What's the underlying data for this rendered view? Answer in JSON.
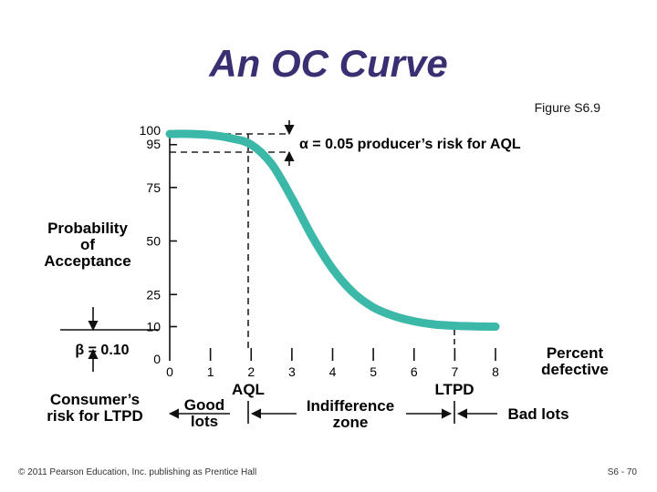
{
  "slide": {
    "title": "An OC Curve",
    "figure_label": "Figure S6.9",
    "footer_left": "© 2011 Pearson Education, Inc. publishing as Prentice Hall",
    "footer_right": "S6 - 70"
  },
  "chart_data": {
    "type": "line",
    "ylabel_lines": [
      "Probability",
      "of",
      "Acceptance"
    ],
    "xlabel_lines": [
      "Percent",
      "defective"
    ],
    "y_ticks": [
      100,
      95,
      75,
      50,
      25,
      10,
      0
    ],
    "x_ticks": [
      0,
      1,
      2,
      3,
      4,
      5,
      6,
      7,
      8
    ],
    "xlim": [
      0,
      8
    ],
    "ylim": [
      0,
      100
    ],
    "series": [
      {
        "x": [
          0,
          0.5,
          1,
          1.5,
          2,
          2.5,
          3,
          3.5,
          4,
          4.5,
          5,
          5.5,
          6,
          6.5,
          7,
          7.5,
          8
        ],
        "y": [
          100,
          100,
          99.5,
          98,
          95,
          86,
          70,
          52,
          37,
          26,
          19,
          15,
          12.5,
          11,
          10.4,
          10.1,
          10
        ],
        "color": "#3cb8a9"
      }
    ],
    "annotations": {
      "alpha": "α = 0.05 producer’s risk for AQL",
      "beta": "β = 0.10",
      "consumer_risk_lines": [
        "Consumer’s",
        "risk for LTPD"
      ],
      "aql": "AQL",
      "ltpd": "LTPD",
      "good_lots_lines": [
        "Good",
        "lots"
      ],
      "indifference_lines": [
        "Indifference",
        "zone"
      ],
      "bad_lots": "Bad lots"
    },
    "reference_points": {
      "aql_x": 2,
      "ltpd_x": 7,
      "alpha_y": 95,
      "beta_y": 10
    }
  }
}
